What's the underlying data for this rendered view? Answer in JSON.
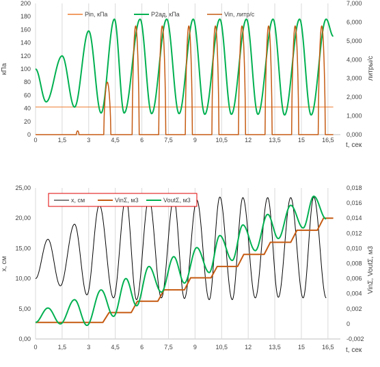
{
  "chart_data": [
    {
      "type": "line",
      "xlabel": "t, сек",
      "ylabel": "кПа",
      "y2label": "литры/с",
      "xlim": [
        0,
        17.2
      ],
      "ylim": [
        0,
        200
      ],
      "y2lim": [
        0,
        7000
      ],
      "xticks": [
        "0",
        "1,5",
        "3",
        "4,5",
        "6",
        "7,5",
        "9",
        "10,5",
        "12",
        "13,5",
        "15",
        "16,5"
      ],
      "yticks": [
        "0",
        "20",
        "40",
        "60",
        "80",
        "100",
        "120",
        "140",
        "160",
        "180",
        "200"
      ],
      "y2ticks": [
        "0,000",
        "1,000",
        "2,000",
        "3,000",
        "4,000",
        "5,000",
        "6,000",
        "7,000"
      ],
      "grid": "vertical",
      "legend": "top-right",
      "colors": {
        "pin": "#ed7d31",
        "p2ad": "#00b050",
        "vin": "#c55a11"
      },
      "series": [
        {
          "name": "Pin, кПа",
          "axis": "left",
          "constant": 42
        },
        {
          "name": "P2ад, кПа",
          "axis": "left",
          "peaks": [
            [
              0.0,
              100
            ],
            [
              0.6,
              50
            ],
            [
              1.5,
              120
            ],
            [
              2.2,
              42
            ],
            [
              3.0,
              158
            ],
            [
              3.7,
              33
            ],
            [
              4.45,
              176
            ],
            [
              5.0,
              33
            ],
            [
              5.9,
              176
            ],
            [
              6.55,
              32
            ],
            [
              7.4,
              176
            ],
            [
              8.1,
              32
            ],
            [
              8.9,
              176
            ],
            [
              9.55,
              31
            ],
            [
              10.4,
              176
            ],
            [
              11.05,
              31
            ],
            [
              11.9,
              176
            ],
            [
              12.55,
              31
            ],
            [
              13.4,
              176
            ],
            [
              14.05,
              30
            ],
            [
              14.9,
              176
            ],
            [
              15.55,
              30
            ],
            [
              16.4,
              176
            ],
            [
              16.8,
              150
            ]
          ]
        },
        {
          "name": "Vin, литр/с",
          "axis": "right",
          "pulses": [
            [
              2.3,
              200
            ],
            [
              3.85,
              2800
            ],
            [
              5.45,
              5800
            ],
            [
              6.95,
              5800
            ],
            [
              8.45,
              5800
            ],
            [
              9.95,
              5800
            ],
            [
              11.45,
              5800
            ],
            [
              12.95,
              5800
            ],
            [
              14.45,
              5800
            ],
            [
              15.95,
              5800
            ]
          ]
        }
      ]
    },
    {
      "type": "line",
      "xlabel": "t, сек",
      "ylabel": "x, см",
      "y2label": "VinΣ, VoutΣ, м3",
      "xlim": [
        0,
        17.2
      ],
      "ylim": [
        0,
        25
      ],
      "y2lim": [
        -0.002,
        0.018
      ],
      "xticks": [
        "0",
        "1,5",
        "3",
        "4,5",
        "6",
        "7,5",
        "9",
        "10,5",
        "12",
        "13,5",
        "15",
        "16,5"
      ],
      "yticks": [
        "0,00",
        "5,00",
        "10,00",
        "15,00",
        "20,00",
        "25,00"
      ],
      "y2ticks": [
        "-0,002",
        "0",
        "0,002",
        "0,004",
        "0,006",
        "0,008",
        "0,010",
        "0,012",
        "0,014",
        "0,016",
        "0,018"
      ],
      "grid": "vertical",
      "legend": "top-left",
      "colors": {
        "x": "#000000",
        "vin": "#c55a11",
        "vout": "#00b050",
        "legend_border": "#e00000"
      },
      "series": [
        {
          "name": "x, см",
          "axis": "left",
          "peaks": [
            [
              0.0,
              10.0
            ],
            [
              0.7,
              16.5
            ],
            [
              1.4,
              8.8
            ],
            [
              2.2,
              19.0
            ],
            [
              2.9,
              7.3
            ],
            [
              3.6,
              22.2
            ],
            [
              4.4,
              6.8
            ],
            [
              5.1,
              23.4
            ],
            [
              5.7,
              6.5
            ],
            [
              6.4,
              23.3
            ],
            [
              7.1,
              6.8
            ],
            [
              7.8,
              23.2
            ],
            [
              8.4,
              6.7
            ],
            [
              9.1,
              23.0
            ],
            [
              9.8,
              6.5
            ],
            [
              10.4,
              23.5
            ],
            [
              11.1,
              6.5
            ],
            [
              11.7,
              23.4
            ],
            [
              12.4,
              6.8
            ],
            [
              13.1,
              23.4
            ],
            [
              13.7,
              6.9
            ],
            [
              14.4,
              23.4
            ],
            [
              15.1,
              6.8
            ],
            [
              15.7,
              23.5
            ],
            [
              16.4,
              6.8
            ]
          ]
        },
        {
          "name": "VinΣ, м3",
          "axis": "right",
          "steps": [
            [
              0.0,
              0.0002
            ],
            [
              3.8,
              0.0015
            ],
            [
              5.4,
              0.003
            ],
            [
              6.9,
              0.0045
            ],
            [
              8.4,
              0.0061
            ],
            [
              9.9,
              0.0076
            ],
            [
              11.4,
              0.0092
            ],
            [
              12.9,
              0.0108
            ],
            [
              14.4,
              0.0124
            ],
            [
              15.9,
              0.014
            ]
          ]
        },
        {
          "name": "VoutΣ, м3",
          "axis": "right",
          "peaks": [
            [
              0.0,
              0.0002
            ],
            [
              0.7,
              0.0021
            ],
            [
              1.4,
              0.0
            ],
            [
              2.2,
              0.0032
            ],
            [
              2.9,
              -0.0002
            ],
            [
              3.7,
              0.0045
            ],
            [
              4.4,
              0.001
            ],
            [
              5.1,
              0.006
            ],
            [
              5.7,
              0.0024
            ],
            [
              6.4,
              0.0076
            ],
            [
              7.1,
              0.0042
            ],
            [
              7.8,
              0.0089
            ],
            [
              8.4,
              0.0054
            ],
            [
              9.1,
              0.0101
            ],
            [
              9.8,
              0.0068
            ],
            [
              10.4,
              0.0117
            ],
            [
              11.1,
              0.0084
            ],
            [
              11.7,
              0.0131
            ],
            [
              12.4,
              0.0097
            ],
            [
              13.1,
              0.0145
            ],
            [
              13.7,
              0.0113
            ],
            [
              14.4,
              0.0157
            ],
            [
              15.1,
              0.0127
            ],
            [
              15.7,
              0.0169
            ],
            [
              16.4,
              0.0139
            ]
          ]
        }
      ]
    }
  ]
}
